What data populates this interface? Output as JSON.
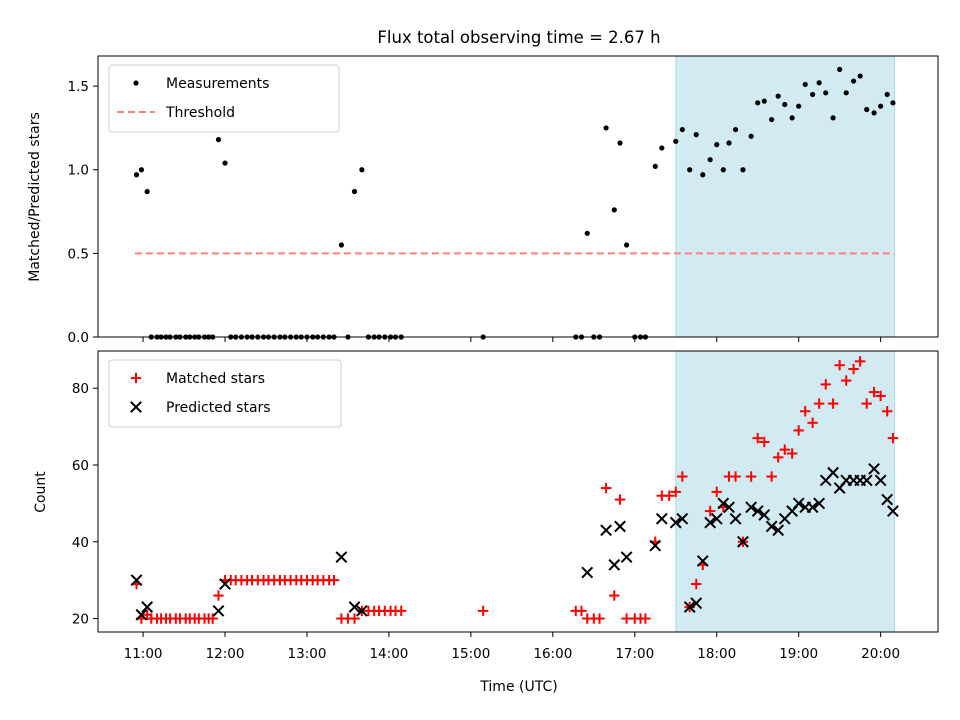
{
  "chart_data": [
    {
      "type": "scatter",
      "title": "Flux total observing time = 2.67 h",
      "ylabel": "Matched/Predicted stars",
      "xlim": [
        10.45,
        20.7
      ],
      "ylim": [
        0,
        1.68
      ],
      "yticks": [
        0.0,
        0.5,
        1.0,
        1.5
      ],
      "ytick_labels": [
        "0.0",
        "0.5",
        "1.0",
        "1.5"
      ],
      "xticks": [
        11,
        12,
        13,
        14,
        15,
        16,
        17,
        18,
        19,
        20
      ],
      "legend_position": "upper-left",
      "highlight_span": {
        "x0": 17.5,
        "x1": 20.17,
        "color": "#add8e6"
      },
      "threshold": {
        "name": "Threshold",
        "y": 0.5,
        "x0": 10.9,
        "x1": 20.17,
        "color": "#ff7f7f"
      },
      "series": [
        {
          "name": "Measurements",
          "color": "#000000",
          "marker": "dot",
          "points": [
            [
              10.92,
              0.97
            ],
            [
              10.98,
              1.0
            ],
            [
              11.05,
              0.87
            ],
            [
              11.1,
              0.0
            ],
            [
              11.17,
              0.0
            ],
            [
              11.22,
              0.0
            ],
            [
              11.28,
              0.0
            ],
            [
              11.33,
              0.0
            ],
            [
              11.4,
              0.0
            ],
            [
              11.45,
              0.0
            ],
            [
              11.52,
              0.0
            ],
            [
              11.57,
              0.0
            ],
            [
              11.63,
              0.0
            ],
            [
              11.68,
              0.0
            ],
            [
              11.75,
              0.0
            ],
            [
              11.8,
              0.0
            ],
            [
              11.85,
              0.0
            ],
            [
              11.92,
              1.18
            ],
            [
              12.0,
              1.04
            ],
            [
              12.07,
              0.0
            ],
            [
              12.13,
              0.0
            ],
            [
              12.2,
              0.0
            ],
            [
              12.27,
              0.0
            ],
            [
              12.33,
              0.0
            ],
            [
              12.4,
              0.0
            ],
            [
              12.47,
              0.0
            ],
            [
              12.53,
              0.0
            ],
            [
              12.6,
              0.0
            ],
            [
              12.67,
              0.0
            ],
            [
              12.73,
              0.0
            ],
            [
              12.8,
              0.0
            ],
            [
              12.87,
              0.0
            ],
            [
              12.93,
              0.0
            ],
            [
              13.0,
              0.0
            ],
            [
              13.07,
              0.0
            ],
            [
              13.13,
              0.0
            ],
            [
              13.2,
              0.0
            ],
            [
              13.27,
              0.0
            ],
            [
              13.33,
              0.0
            ],
            [
              13.42,
              0.55
            ],
            [
              13.5,
              0.0
            ],
            [
              13.58,
              0.87
            ],
            [
              13.67,
              1.0
            ],
            [
              13.75,
              0.0
            ],
            [
              13.82,
              0.0
            ],
            [
              13.88,
              0.0
            ],
            [
              13.95,
              0.0
            ],
            [
              14.02,
              0.0
            ],
            [
              14.08,
              0.0
            ],
            [
              14.15,
              0.0
            ],
            [
              15.15,
              0.0
            ],
            [
              16.28,
              0.0
            ],
            [
              16.35,
              0.0
            ],
            [
              16.42,
              0.62
            ],
            [
              16.5,
              0.0
            ],
            [
              16.57,
              0.0
            ],
            [
              16.65,
              1.25
            ],
            [
              16.75,
              0.76
            ],
            [
              16.82,
              1.16
            ],
            [
              16.9,
              0.55
            ],
            [
              17.0,
              0.0
            ],
            [
              17.07,
              0.0
            ],
            [
              17.13,
              0.0
            ],
            [
              17.25,
              1.02
            ],
            [
              17.33,
              1.13
            ],
            [
              17.5,
              1.17
            ],
            [
              17.58,
              1.24
            ],
            [
              17.67,
              1.0
            ],
            [
              17.75,
              1.21
            ],
            [
              17.83,
              0.97
            ],
            [
              17.92,
              1.06
            ],
            [
              18.0,
              1.15
            ],
            [
              18.08,
              1.0
            ],
            [
              18.15,
              1.16
            ],
            [
              18.23,
              1.24
            ],
            [
              18.32,
              1.0
            ],
            [
              18.42,
              1.2
            ],
            [
              18.5,
              1.4
            ],
            [
              18.58,
              1.41
            ],
            [
              18.67,
              1.3
            ],
            [
              18.75,
              1.44
            ],
            [
              18.83,
              1.39
            ],
            [
              18.92,
              1.31
            ],
            [
              19.0,
              1.38
            ],
            [
              19.08,
              1.51
            ],
            [
              19.17,
              1.45
            ],
            [
              19.25,
              1.52
            ],
            [
              19.33,
              1.46
            ],
            [
              19.42,
              1.31
            ],
            [
              19.5,
              1.6
            ],
            [
              19.58,
              1.46
            ],
            [
              19.67,
              1.53
            ],
            [
              19.75,
              1.56
            ],
            [
              19.83,
              1.36
            ],
            [
              19.92,
              1.34
            ],
            [
              20.0,
              1.38
            ],
            [
              20.08,
              1.45
            ],
            [
              20.15,
              1.4
            ]
          ]
        }
      ]
    },
    {
      "type": "scatter",
      "title": "",
      "xlabel": "Time (UTC)",
      "ylabel": "Count",
      "xlim": [
        10.45,
        20.7
      ],
      "ylim": [
        16.5,
        89.7
      ],
      "xticks": [
        11,
        12,
        13,
        14,
        15,
        16,
        17,
        18,
        19,
        20
      ],
      "xtick_labels": [
        "11:00",
        "12:00",
        "13:00",
        "14:00",
        "15:00",
        "16:00",
        "17:00",
        "18:00",
        "19:00",
        "20:00"
      ],
      "yticks": [
        20,
        40,
        60,
        80
      ],
      "ytick_labels": [
        "20",
        "40",
        "60",
        "80"
      ],
      "legend_position": "upper-left",
      "highlight_span": {
        "x0": 17.5,
        "x1": 20.17,
        "color": "#add8e6"
      },
      "series": [
        {
          "name": "Matched stars",
          "color": "#ff0000",
          "marker": "plus",
          "points": [
            [
              10.92,
              29
            ],
            [
              10.98,
              20
            ],
            [
              11.05,
              21
            ],
            [
              11.1,
              20
            ],
            [
              11.17,
              20
            ],
            [
              11.22,
              20
            ],
            [
              11.28,
              20
            ],
            [
              11.33,
              20
            ],
            [
              11.4,
              20
            ],
            [
              11.45,
              20
            ],
            [
              11.52,
              20
            ],
            [
              11.57,
              20
            ],
            [
              11.63,
              20
            ],
            [
              11.68,
              20
            ],
            [
              11.75,
              20
            ],
            [
              11.8,
              20
            ],
            [
              11.85,
              20
            ],
            [
              11.92,
              26
            ],
            [
              12.0,
              30
            ],
            [
              12.07,
              30
            ],
            [
              12.13,
              30
            ],
            [
              12.2,
              30
            ],
            [
              12.27,
              30
            ],
            [
              12.33,
              30
            ],
            [
              12.4,
              30
            ],
            [
              12.47,
              30
            ],
            [
              12.53,
              30
            ],
            [
              12.6,
              30
            ],
            [
              12.67,
              30
            ],
            [
              12.73,
              30
            ],
            [
              12.8,
              30
            ],
            [
              12.87,
              30
            ],
            [
              12.93,
              30
            ],
            [
              13.0,
              30
            ],
            [
              13.07,
              30
            ],
            [
              13.13,
              30
            ],
            [
              13.2,
              30
            ],
            [
              13.27,
              30
            ],
            [
              13.33,
              30
            ],
            [
              13.42,
              20
            ],
            [
              13.5,
              20
            ],
            [
              13.58,
              20
            ],
            [
              13.67,
              22
            ],
            [
              13.75,
              22
            ],
            [
              13.82,
              22
            ],
            [
              13.88,
              22
            ],
            [
              13.95,
              22
            ],
            [
              14.02,
              22
            ],
            [
              14.08,
              22
            ],
            [
              14.15,
              22
            ],
            [
              15.15,
              22
            ],
            [
              16.28,
              22
            ],
            [
              16.35,
              22
            ],
            [
              16.42,
              20
            ],
            [
              16.5,
              20
            ],
            [
              16.57,
              20
            ],
            [
              16.65,
              54
            ],
            [
              16.75,
              26
            ],
            [
              16.82,
              51
            ],
            [
              16.9,
              20
            ],
            [
              17.0,
              20
            ],
            [
              17.07,
              20
            ],
            [
              17.13,
              20
            ],
            [
              17.25,
              40
            ],
            [
              17.33,
              52
            ],
            [
              17.42,
              52
            ],
            [
              17.5,
              53
            ],
            [
              17.58,
              57
            ],
            [
              17.67,
              23
            ],
            [
              17.75,
              29
            ],
            [
              17.83,
              34
            ],
            [
              17.92,
              48
            ],
            [
              18.0,
              53
            ],
            [
              18.08,
              49
            ],
            [
              18.15,
              57
            ],
            [
              18.23,
              57
            ],
            [
              18.32,
              40
            ],
            [
              18.42,
              57
            ],
            [
              18.5,
              67
            ],
            [
              18.58,
              66
            ],
            [
              18.67,
              57
            ],
            [
              18.75,
              62
            ],
            [
              18.83,
              64
            ],
            [
              18.92,
              63
            ],
            [
              19.0,
              69
            ],
            [
              19.08,
              74
            ],
            [
              19.17,
              71
            ],
            [
              19.25,
              76
            ],
            [
              19.33,
              81
            ],
            [
              19.42,
              76
            ],
            [
              19.5,
              86
            ],
            [
              19.58,
              82
            ],
            [
              19.67,
              85
            ],
            [
              19.75,
              87
            ],
            [
              19.83,
              76
            ],
            [
              19.92,
              79
            ],
            [
              20.0,
              78
            ],
            [
              20.08,
              74
            ],
            [
              20.15,
              67
            ]
          ]
        },
        {
          "name": "Predicted stars",
          "color": "#000000",
          "marker": "x",
          "points": [
            [
              10.92,
              30
            ],
            [
              10.98,
              21
            ],
            [
              11.05,
              23
            ],
            [
              11.92,
              22
            ],
            [
              12.0,
              29
            ],
            [
              13.42,
              36
            ],
            [
              13.58,
              23
            ],
            [
              13.67,
              22
            ],
            [
              16.42,
              32
            ],
            [
              16.65,
              43
            ],
            [
              16.75,
              34
            ],
            [
              16.82,
              44
            ],
            [
              16.9,
              36
            ],
            [
              17.25,
              39
            ],
            [
              17.33,
              46
            ],
            [
              17.5,
              45
            ],
            [
              17.58,
              46
            ],
            [
              17.67,
              23
            ],
            [
              17.75,
              24
            ],
            [
              17.83,
              35
            ],
            [
              17.92,
              45
            ],
            [
              18.0,
              46
            ],
            [
              18.08,
              50
            ],
            [
              18.15,
              49
            ],
            [
              18.23,
              46
            ],
            [
              18.32,
              40
            ],
            [
              18.42,
              49
            ],
            [
              18.5,
              48
            ],
            [
              18.58,
              47
            ],
            [
              18.67,
              44
            ],
            [
              18.75,
              43
            ],
            [
              18.83,
              46
            ],
            [
              18.92,
              48
            ],
            [
              19.0,
              50
            ],
            [
              19.08,
              49
            ],
            [
              19.17,
              49
            ],
            [
              19.25,
              50
            ],
            [
              19.33,
              56
            ],
            [
              19.42,
              58
            ],
            [
              19.5,
              54
            ],
            [
              19.58,
              56
            ],
            [
              19.67,
              56
            ],
            [
              19.75,
              56
            ],
            [
              19.83,
              56
            ],
            [
              19.92,
              59
            ],
            [
              20.0,
              56
            ],
            [
              20.08,
              51
            ],
            [
              20.15,
              48
            ]
          ]
        }
      ]
    }
  ]
}
